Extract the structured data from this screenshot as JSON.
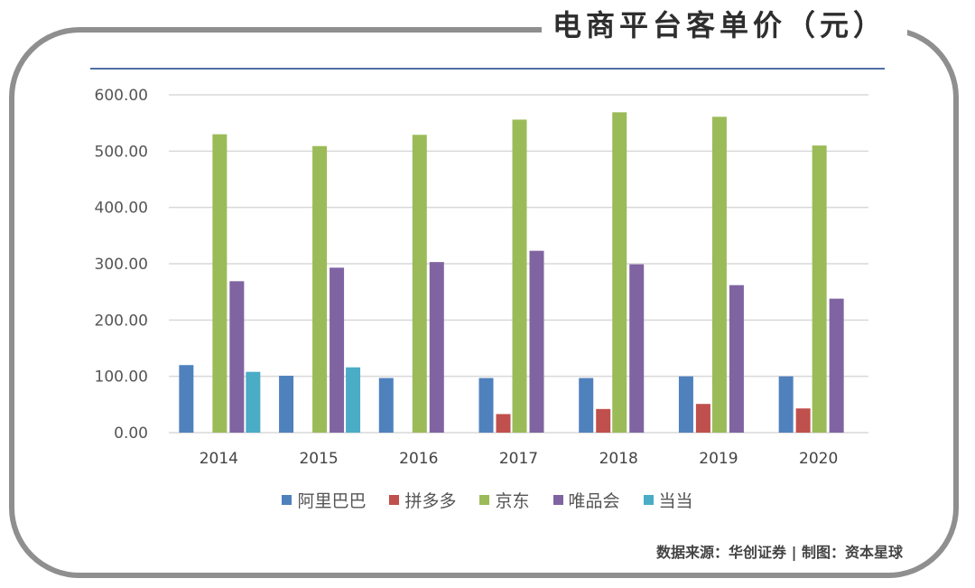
{
  "title": "电商平台客单价（元）",
  "source_text": "数据来源：华创证券   |  制图：资本星球",
  "chart_data": {
    "type": "bar",
    "title": "电商平台客单价（元）",
    "categories": [
      "2014",
      "2015",
      "2016",
      "2017",
      "2018",
      "2019",
      "2020"
    ],
    "ylim": [
      0,
      600
    ],
    "yticks": [
      "0.00",
      "100.00",
      "200.00",
      "300.00",
      "400.00",
      "500.00",
      "600.00"
    ],
    "grid": true,
    "legend_position": "bottom",
    "series": [
      {
        "name": "阿里巴巴",
        "color": "#4f81bd",
        "values": [
          120,
          101,
          97,
          97,
          97,
          100,
          100
        ]
      },
      {
        "name": "拼多多",
        "color": "#c0504d",
        "values": [
          null,
          null,
          null,
          33,
          42,
          51,
          43
        ]
      },
      {
        "name": "京东",
        "color": "#9bbb59",
        "values": [
          530,
          509,
          529,
          556,
          569,
          561,
          510
        ]
      },
      {
        "name": "唯品会",
        "color": "#8064a2",
        "values": [
          269,
          293,
          303,
          323,
          299,
          262,
          238
        ]
      },
      {
        "name": "当当",
        "color": "#4bacc6",
        "values": [
          108,
          116,
          null,
          null,
          null,
          null,
          null
        ]
      }
    ]
  }
}
